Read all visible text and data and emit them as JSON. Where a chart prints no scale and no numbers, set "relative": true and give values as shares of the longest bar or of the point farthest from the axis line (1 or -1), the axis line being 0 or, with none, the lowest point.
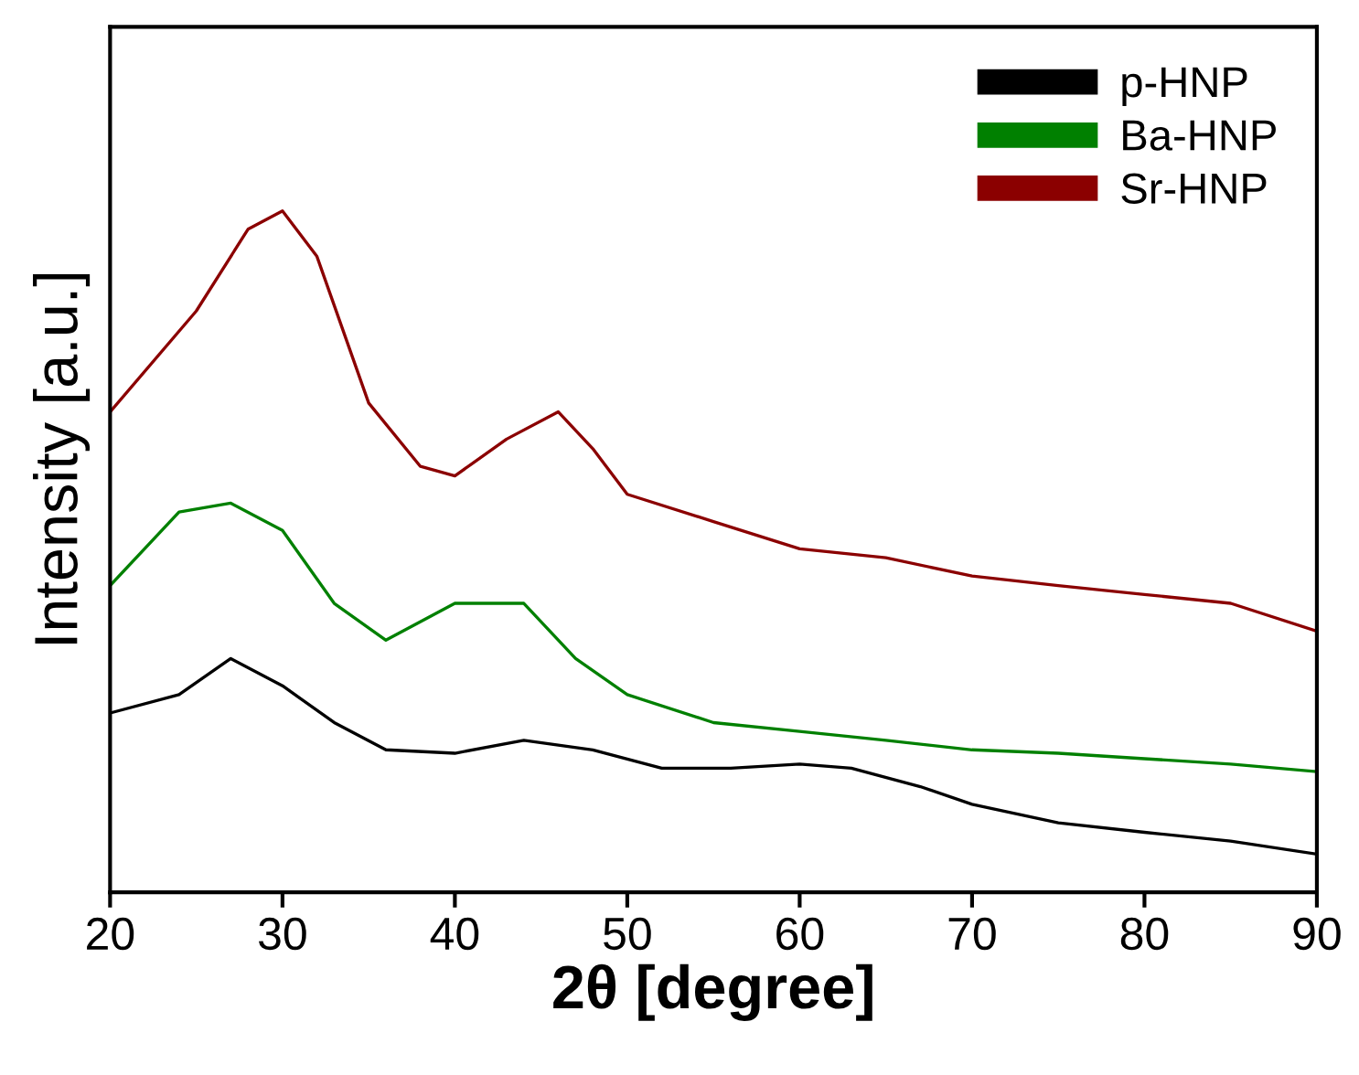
{
  "chart_data": {
    "type": "line",
    "relative": true,
    "xlabel": "2θ [degree]",
    "ylabel": "Intensity [a.u.]",
    "xlim": [
      20,
      90
    ],
    "xticks": [
      20,
      30,
      40,
      50,
      60,
      70,
      80,
      90
    ],
    "legend": "top right",
    "grid": false,
    "series": [
      {
        "name": "p-HNP",
        "color": "#000000",
        "x": [
          20,
          24,
          27,
          30,
          33,
          36,
          40,
          44,
          48,
          52,
          56,
          60,
          63,
          67,
          70,
          75,
          80,
          85,
          90
        ],
        "values": [
          0.263,
          0.29,
          0.343,
          0.303,
          0.249,
          0.209,
          0.204,
          0.223,
          0.209,
          0.182,
          0.182,
          0.188,
          0.182,
          0.155,
          0.129,
          0.102,
          0.088,
          0.075,
          0.056
        ]
      },
      {
        "name": "Ba-HNP",
        "color": "#008000",
        "x": [
          20,
          24,
          27,
          30,
          33,
          36,
          40,
          44,
          47,
          50,
          55,
          60,
          65,
          70,
          75,
          80,
          85,
          90
        ],
        "values": [
          0.45,
          0.558,
          0.571,
          0.531,
          0.424,
          0.37,
          0.424,
          0.424,
          0.343,
          0.29,
          0.249,
          0.236,
          0.223,
          0.209,
          0.204,
          0.196,
          0.188,
          0.177
        ]
      },
      {
        "name": "Sr-HNP",
        "color": "#8b0000",
        "x": [
          20,
          25,
          28,
          30,
          32,
          35,
          38,
          40,
          43,
          46,
          48,
          50,
          55,
          60,
          65,
          70,
          75,
          80,
          85,
          90
        ],
        "values": [
          0.705,
          0.853,
          0.973,
          1,
          0.933,
          0.718,
          0.625,
          0.611,
          0.665,
          0.705,
          0.651,
          0.584,
          0.544,
          0.504,
          0.491,
          0.464,
          0.45,
          0.437,
          0.424,
          0.383
        ]
      }
    ]
  }
}
